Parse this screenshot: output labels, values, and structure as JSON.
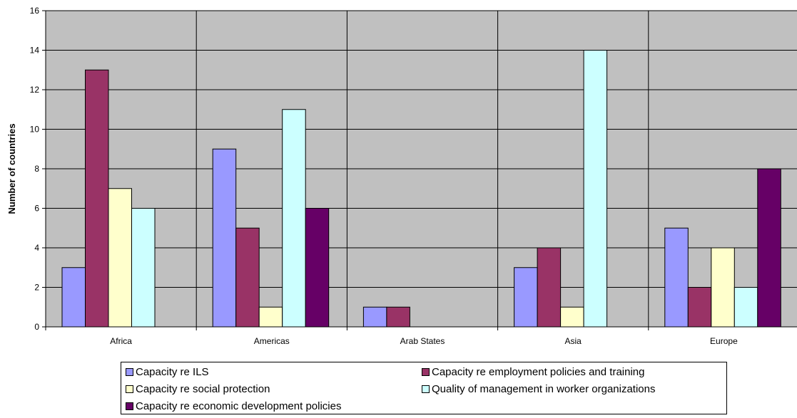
{
  "chart_data": {
    "type": "bar",
    "title": "",
    "xlabel": "",
    "ylabel": "Number of countries",
    "ylim": [
      0,
      16
    ],
    "yticks": [
      0,
      2,
      4,
      6,
      8,
      10,
      12,
      14,
      16
    ],
    "ytick_labels": [
      "0",
      "2",
      "4",
      "6",
      "8",
      "10",
      "12",
      "14",
      "16"
    ],
    "grid": true,
    "plot_background": "#c0c0c0",
    "legend_position": "bottom",
    "categories": [
      "Africa",
      "Americas",
      "Arab States",
      "Asia",
      "Europe"
    ],
    "series": [
      {
        "name": "Capacity re ILS",
        "color": "#9999ff",
        "values": [
          3,
          9,
          1,
          3,
          5
        ]
      },
      {
        "name": "Capacity re employment policies and training",
        "color": "#993366",
        "values": [
          13,
          5,
          1,
          4,
          2
        ]
      },
      {
        "name": "Capacity re social protection",
        "color": "#ffffcc",
        "values": [
          7,
          1,
          0,
          1,
          4
        ]
      },
      {
        "name": "Quality of management in worker organizations",
        "color": "#ccffff",
        "values": [
          6,
          11,
          0,
          14,
          2
        ]
      },
      {
        "name": "Capacity re economic development policies",
        "color": "#660066",
        "values": [
          0,
          6,
          0,
          0,
          8
        ]
      }
    ]
  }
}
